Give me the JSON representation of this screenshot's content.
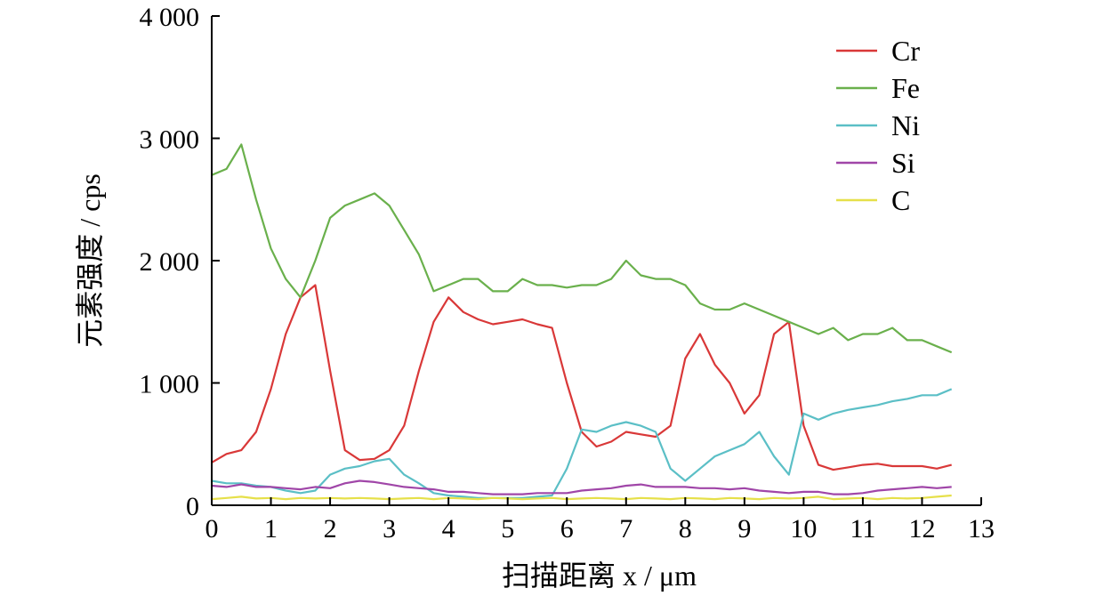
{
  "chart_data": {
    "type": "line",
    "title": "",
    "xlabel": "扫描距离 x / μm",
    "ylabel": "元素强度 / cps",
    "xlim": [
      0,
      13
    ],
    "ylim": [
      0,
      4000
    ],
    "x_ticks": [
      0,
      1,
      2,
      3,
      4,
      5,
      6,
      7,
      8,
      9,
      10,
      11,
      12,
      13
    ],
    "x_tick_labels": [
      "0",
      "1",
      "2",
      "3",
      "4",
      "5",
      "6",
      "7",
      "8",
      "9",
      "10",
      "11",
      "12",
      "13"
    ],
    "y_ticks": [
      0,
      1000,
      2000,
      3000,
      4000
    ],
    "y_tick_labels": [
      "0",
      "1 000",
      "2 000",
      "3 000",
      "4 000"
    ],
    "grid": false,
    "legend_position": "top-right",
    "x": [
      0,
      0.25,
      0.5,
      0.75,
      1,
      1.25,
      1.5,
      1.75,
      2,
      2.25,
      2.5,
      2.75,
      3,
      3.25,
      3.5,
      3.75,
      4,
      4.25,
      4.5,
      4.75,
      5,
      5.25,
      5.5,
      5.75,
      6,
      6.25,
      6.5,
      6.75,
      7,
      7.25,
      7.5,
      7.75,
      8,
      8.25,
      8.5,
      8.75,
      9,
      9.25,
      9.5,
      9.75,
      10,
      10.25,
      10.5,
      10.75,
      11,
      11.25,
      11.5,
      11.75,
      12,
      12.25,
      12.5
    ],
    "series": [
      {
        "name": "Cr",
        "color": "#d93838",
        "values": [
          350,
          420,
          450,
          600,
          950,
          1400,
          1700,
          1800,
          1100,
          450,
          370,
          380,
          450,
          650,
          1100,
          1500,
          1700,
          1580,
          1520,
          1480,
          1500,
          1520,
          1480,
          1450,
          1000,
          600,
          480,
          520,
          600,
          580,
          560,
          650,
          1200,
          1400,
          1150,
          1000,
          750,
          900,
          1400,
          1500,
          650,
          330,
          290,
          310,
          330,
          340,
          320,
          320,
          320,
          300,
          330
        ]
      },
      {
        "name": "Fe",
        "color": "#6ab04c",
        "values": [
          2700,
          2750,
          2950,
          2500,
          2100,
          1850,
          1700,
          2000,
          2350,
          2450,
          2500,
          2550,
          2450,
          2250,
          2050,
          1750,
          1800,
          1850,
          1850,
          1750,
          1750,
          1850,
          1800,
          1800,
          1780,
          1800,
          1800,
          1850,
          2000,
          1880,
          1850,
          1850,
          1800,
          1650,
          1600,
          1600,
          1650,
          1600,
          1550,
          1500,
          1450,
          1400,
          1450,
          1350,
          1400,
          1400,
          1450,
          1350,
          1350,
          1300,
          1250
        ]
      },
      {
        "name": "Ni",
        "color": "#5bbfc6",
        "values": [
          200,
          180,
          180,
          160,
          150,
          120,
          100,
          120,
          250,
          300,
          320,
          360,
          380,
          250,
          180,
          100,
          80,
          70,
          60,
          60,
          60,
          60,
          70,
          80,
          300,
          620,
          600,
          650,
          680,
          650,
          600,
          300,
          200,
          300,
          400,
          450,
          500,
          600,
          400,
          250,
          750,
          700,
          750,
          780,
          800,
          820,
          850,
          870,
          900,
          900,
          950
        ]
      },
      {
        "name": "Si",
        "color": "#a046a8",
        "values": [
          160,
          150,
          170,
          150,
          150,
          140,
          130,
          150,
          140,
          180,
          200,
          190,
          170,
          150,
          140,
          130,
          110,
          110,
          100,
          90,
          90,
          90,
          100,
          100,
          100,
          120,
          130,
          140,
          160,
          170,
          150,
          150,
          150,
          140,
          140,
          130,
          140,
          120,
          110,
          100,
          110,
          110,
          90,
          90,
          100,
          120,
          130,
          140,
          150,
          140,
          150
        ]
      },
      {
        "name": "C",
        "color": "#e6e04a",
        "values": [
          50,
          60,
          70,
          55,
          60,
          50,
          60,
          55,
          60,
          55,
          60,
          55,
          50,
          55,
          60,
          50,
          60,
          55,
          50,
          60,
          55,
          50,
          55,
          60,
          50,
          55,
          60,
          55,
          50,
          60,
          55,
          50,
          60,
          55,
          50,
          60,
          55,
          50,
          60,
          55,
          60,
          70,
          50,
          55,
          60,
          50,
          60,
          55,
          60,
          70,
          80
        ]
      }
    ]
  }
}
